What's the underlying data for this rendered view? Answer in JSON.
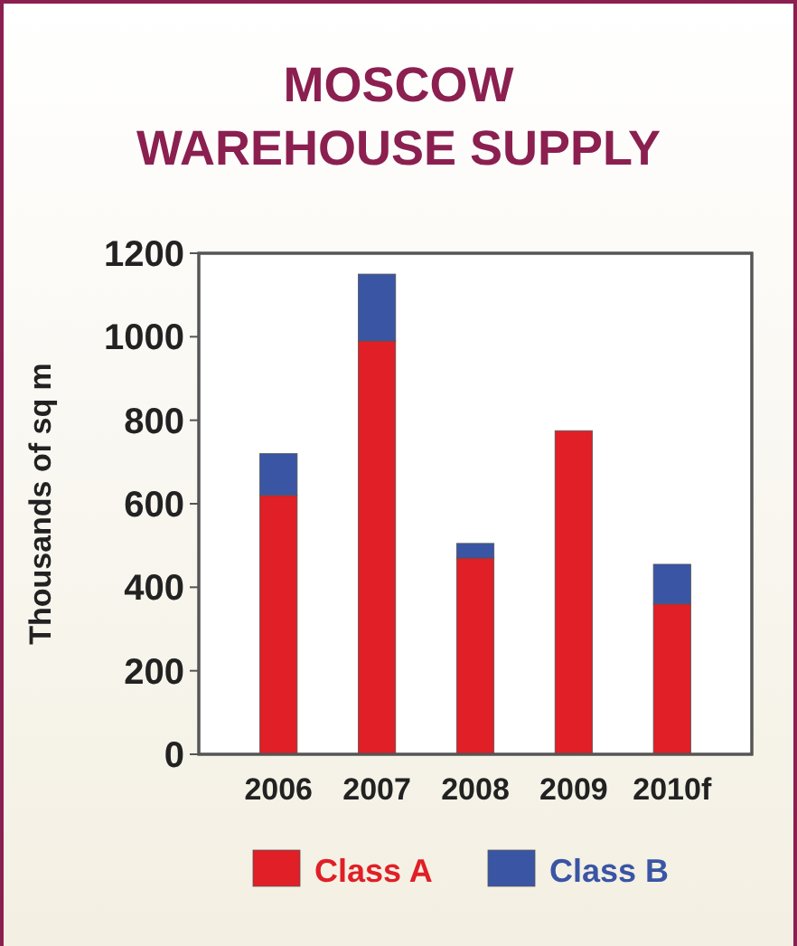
{
  "chart_data": {
    "type": "bar",
    "title": "MOSCOW\nWAREHOUSE SUPPLY",
    "ylabel": "Thousands of sq m",
    "categories": [
      "2006",
      "2007",
      "2008",
      "2009",
      "2010f"
    ],
    "stacked": true,
    "series": [
      {
        "name": "Class A",
        "color": "#e01f26",
        "values": [
          620,
          990,
          470,
          775,
          360
        ]
      },
      {
        "name": "Class B",
        "color": "#3a55a4",
        "values": [
          100,
          160,
          35,
          0,
          95
        ]
      }
    ],
    "ylim": [
      0,
      1200
    ],
    "yticks": [
      0,
      200,
      400,
      600,
      800,
      1000,
      1200
    ],
    "legend": "bottom"
  }
}
